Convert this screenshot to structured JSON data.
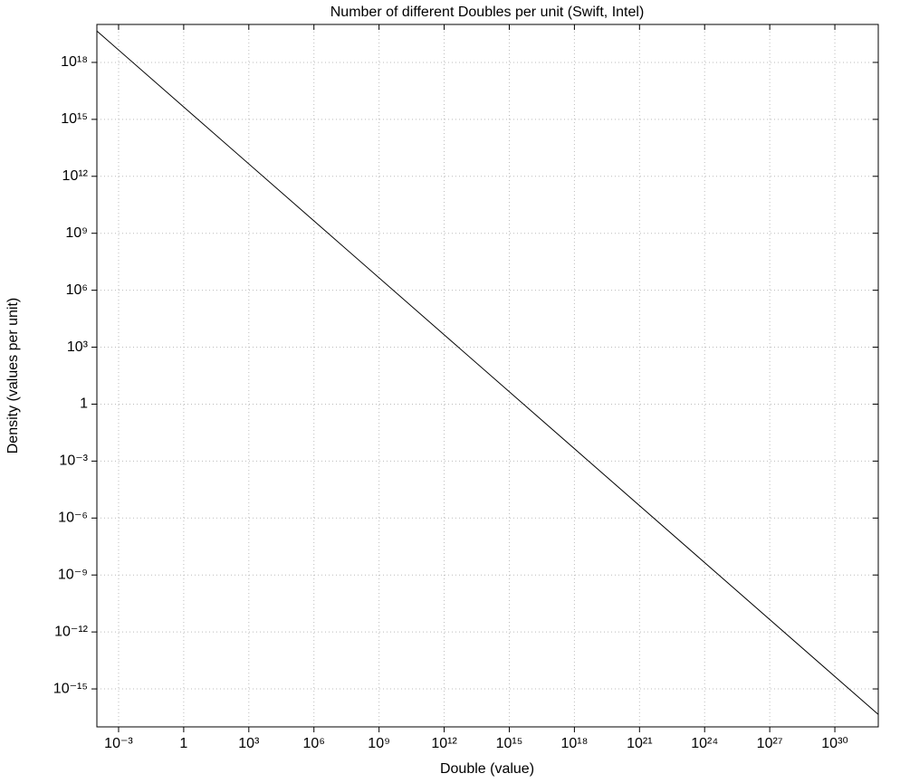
{
  "chart_data": {
    "type": "line",
    "title": "Number of different Doubles per unit (Swift, Intel)",
    "x_label": "Double (value)",
    "y_label": "Density (values per unit)",
    "x": [
      0.0001,
      1e+32
    ],
    "series": [
      {
        "color": "#000000",
        "values": [
          4.5e+19,
          4.5e-17
        ]
      }
    ],
    "xscale": "log",
    "yscale": "log",
    "grid": true,
    "xlim": [
      0.0001,
      1e+32
    ],
    "ylim": [
      1e-17,
      1e+20
    ],
    "xticks": [
      {
        "value": 0.001,
        "label": "10⁻³"
      },
      1,
      {
        "value": 1000,
        "label": "10³"
      },
      {
        "value": 1000000.0,
        "label": "10⁶"
      },
      {
        "value": 1000000000.0,
        "label": "10⁹"
      },
      {
        "value": 1000000000000.0,
        "label": "10¹²"
      },
      {
        "value": 1000000000000000.0,
        "label": "10¹⁵"
      },
      {
        "value": 1e+18,
        "label": "10¹⁸"
      },
      {
        "value": 1e+21,
        "label": "10²¹"
      },
      {
        "value": 1e+24,
        "label": "10²⁴"
      },
      {
        "value": 1e+27,
        "label": "10²⁷"
      },
      {
        "value": 1e+30,
        "label": "10³⁰"
      }
    ],
    "yticks": [
      {
        "value": 1e-15,
        "label": "10⁻¹⁵"
      },
      {
        "value": 1e-12,
        "label": "10⁻¹²"
      },
      {
        "value": 1e-09,
        "label": "10⁻⁹"
      },
      {
        "value": 1e-06,
        "label": "10⁻⁶"
      },
      {
        "value": 0.001,
        "label": "10⁻³"
      },
      1,
      {
        "value": 1000,
        "label": "10³"
      },
      {
        "value": 1000000.0,
        "label": "10⁶"
      },
      {
        "value": 1000000000.0,
        "label": "10⁹"
      },
      {
        "value": 1000000000000.0,
        "label": "10¹²"
      },
      {
        "value": 1000000000000000.0,
        "label": "10¹⁵"
      },
      {
        "value": 1e+18,
        "label": "10¹⁸"
      }
    ]
  }
}
